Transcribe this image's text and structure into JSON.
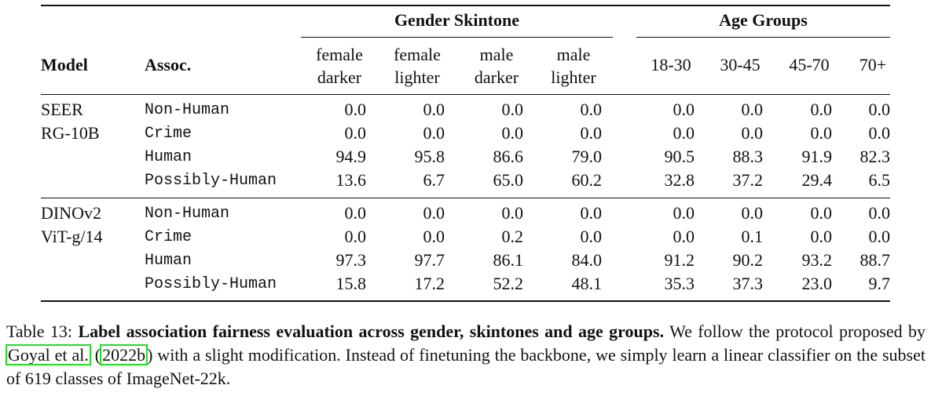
{
  "table": {
    "group_headers": [
      "Gender Skintone",
      "Age Groups"
    ],
    "columns": [
      "Model",
      "Assoc.",
      "female darker",
      "female lighter",
      "male darker",
      "male lighter",
      "18-30",
      "30-45",
      "45-70",
      "70+"
    ],
    "blocks": [
      {
        "model": [
          "SEER",
          "RG-10B"
        ],
        "rows": [
          {
            "assoc": "Non-Human",
            "values": [
              "0.0",
              "0.0",
              "0.0",
              "0.0",
              "0.0",
              "0.0",
              "0.0",
              "0.0"
            ]
          },
          {
            "assoc": "Crime",
            "values": [
              "0.0",
              "0.0",
              "0.0",
              "0.0",
              "0.0",
              "0.0",
              "0.0",
              "0.0"
            ]
          },
          {
            "assoc": "Human",
            "values": [
              "94.9",
              "95.8",
              "86.6",
              "79.0",
              "90.5",
              "88.3",
              "91.9",
              "82.3"
            ]
          },
          {
            "assoc": "Possibly-Human",
            "values": [
              "13.6",
              "6.7",
              "65.0",
              "60.2",
              "32.8",
              "37.2",
              "29.4",
              "6.5"
            ]
          }
        ]
      },
      {
        "model": [
          "DINOv2",
          "ViT-g/14"
        ],
        "rows": [
          {
            "assoc": "Non-Human",
            "values": [
              "0.0",
              "0.0",
              "0.0",
              "0.0",
              "0.0",
              "0.0",
              "0.0",
              "0.0"
            ]
          },
          {
            "assoc": "Crime",
            "values": [
              "0.0",
              "0.0",
              "0.2",
              "0.0",
              "0.0",
              "0.1",
              "0.0",
              "0.0"
            ]
          },
          {
            "assoc": "Human",
            "values": [
              "97.3",
              "97.7",
              "86.1",
              "84.0",
              "91.2",
              "90.2",
              "93.2",
              "88.7"
            ]
          },
          {
            "assoc": "Possibly-Human",
            "values": [
              "15.8",
              "17.2",
              "52.2",
              "48.1",
              "35.3",
              "37.3",
              "23.0",
              "9.7"
            ]
          }
        ]
      }
    ]
  },
  "caption": {
    "label": "Table 13:",
    "title": "Label association fairness evaluation across gender, skintones and age groups.",
    "text1": "We follow the protocol proposed by",
    "cite_author": "Goyal et al.",
    "text2": "(",
    "cite_year": "2022b",
    "text3": ") with a slight modification. Instead of finetuning the backbone, we simply learn a linear classifier on the subset of 619 classes of ImageNet-22k."
  }
}
